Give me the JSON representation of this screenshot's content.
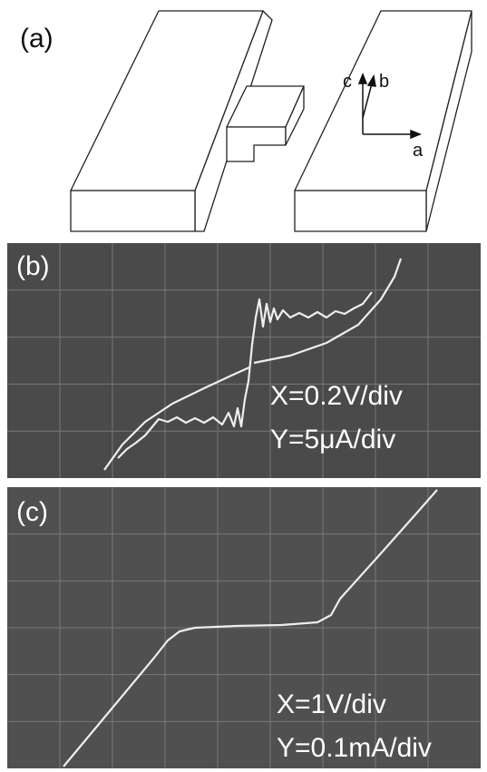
{
  "panel_a": {
    "label": "(a)",
    "axis_labels": {
      "c": "c",
      "b": "b",
      "a": "a"
    }
  },
  "panel_b": {
    "label": "(b)",
    "x_scale": "X=0.2V/div",
    "y_scale": "Y=5μA/div"
  },
  "panel_c": {
    "label": "(c)",
    "x_scale": "X=1V/div",
    "y_scale": "Y=0.1mA/div"
  }
}
